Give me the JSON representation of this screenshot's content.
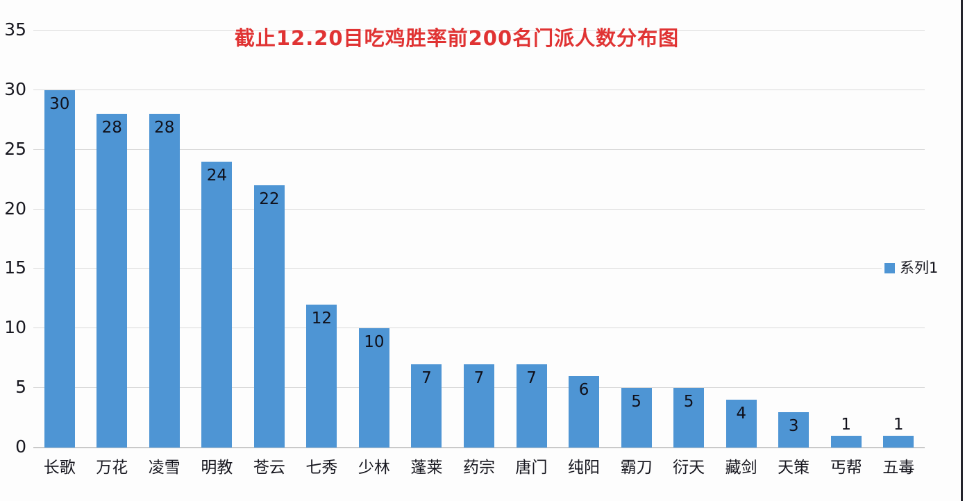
{
  "title": "截止12.20目吃鸡胜率前200名门派人数分布图",
  "legend": {
    "label": "系列1"
  },
  "colors": {
    "bar": "#4e95d4",
    "title": "#e03333",
    "gridline": "#d9d9d9",
    "axis_line": "#c9c9c9",
    "text": "#17171f",
    "right_edge": "#23232b",
    "background": "#fdfdfd"
  },
  "y_axis": {
    "ticks": [
      0,
      5,
      10,
      15,
      20,
      25,
      30,
      35
    ]
  },
  "chart_data": {
    "type": "bar",
    "title": "截止12.20目吃鸡胜率前200名门派人数分布图",
    "categories": [
      "长歌",
      "万花",
      "凌雪",
      "明教",
      "苍云",
      "七秀",
      "少林",
      "蓬莱",
      "药宗",
      "唐门",
      "纯阳",
      "霸刀",
      "衍天",
      "藏剑",
      "天策",
      "丐帮",
      "五毒"
    ],
    "series": [
      {
        "name": "系列1",
        "values": [
          30,
          28,
          28,
          24,
          22,
          12,
          10,
          7,
          7,
          7,
          6,
          5,
          5,
          4,
          3,
          1,
          1
        ]
      }
    ],
    "xlabel": "",
    "ylabel": "",
    "ylim": [
      0,
      35
    ],
    "ytick_interval": 5,
    "grid": true,
    "data_labels": true,
    "legend_position": "right"
  }
}
